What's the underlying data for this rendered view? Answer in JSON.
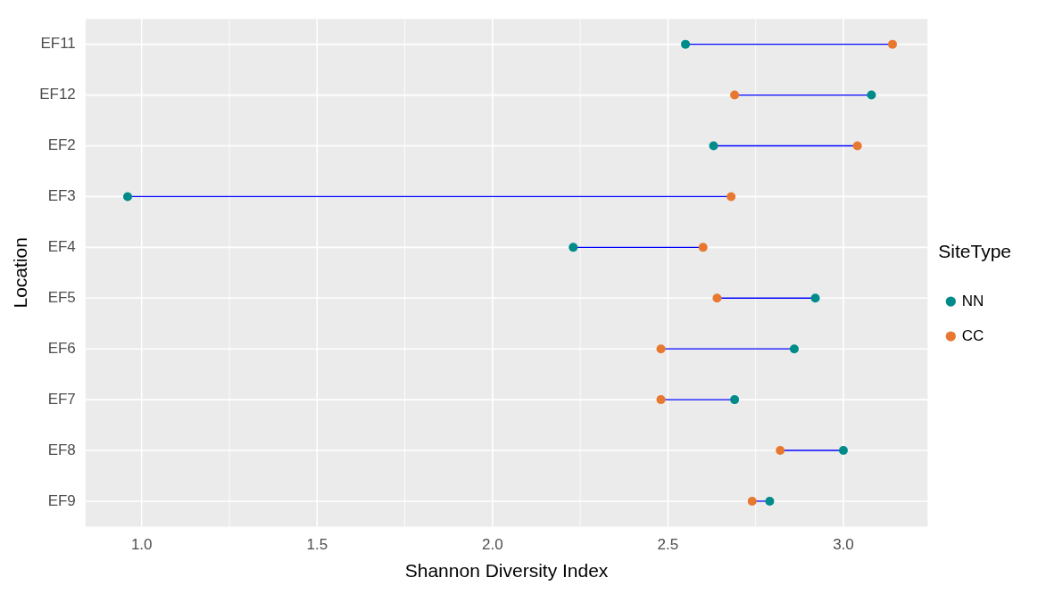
{
  "chart_data": {
    "type": "scatter",
    "xlabel": "Shannon Diversity Index",
    "ylabel": "Location",
    "legend_title": "SiteType",
    "categories": [
      "EF11",
      "EF12",
      "EF2",
      "EF3",
      "EF4",
      "EF5",
      "EF6",
      "EF7",
      "EF8",
      "EF9"
    ],
    "series": [
      {
        "name": "NN",
        "color": "#008b8b",
        "values": [
          2.55,
          3.08,
          2.63,
          0.96,
          2.23,
          2.92,
          2.86,
          2.69,
          3.0,
          2.79
        ]
      },
      {
        "name": "CC",
        "color": "#e8782f",
        "values": [
          3.14,
          2.69,
          3.04,
          2.68,
          2.6,
          2.64,
          2.48,
          2.48,
          2.82,
          2.74
        ]
      }
    ],
    "xlim": [
      0.84,
      3.24
    ],
    "xticks": [
      {
        "value": 1,
        "label": "1.0"
      },
      {
        "value": 1.5,
        "label": "1.5"
      },
      {
        "value": 2,
        "label": "2.0"
      },
      {
        "value": 2.5,
        "label": "2.5"
      },
      {
        "value": 3,
        "label": "3.0"
      }
    ],
    "grid": true,
    "legend": "right",
    "marker": "circle",
    "orientation": "horizontal"
  }
}
